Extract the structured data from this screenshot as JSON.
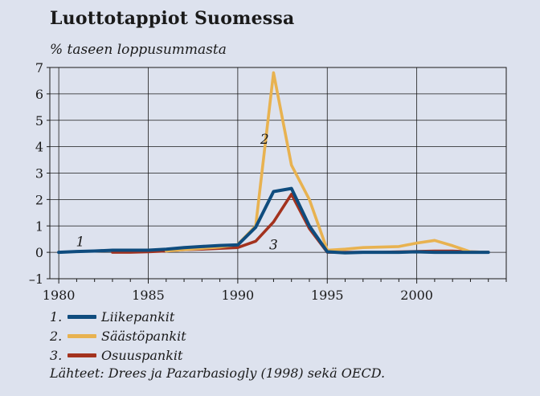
{
  "chart_data": {
    "type": "line",
    "title": "Luottotappiot Suomessa",
    "subtitle": "% taseen loppusummasta",
    "xlabel": "",
    "ylabel": "",
    "xlim": [
      1979.5,
      2005
    ],
    "ylim": [
      -1,
      7
    ],
    "x_ticks": [
      "1980",
      "1985",
      "1990",
      "1995",
      "2000"
    ],
    "x_tick_values": [
      1980,
      1985,
      1990,
      1995,
      2000
    ],
    "y_ticks": [
      "–1",
      "0",
      "1",
      "2",
      "3",
      "4",
      "5",
      "6",
      "7"
    ],
    "y_tick_values": [
      -1,
      0,
      1,
      2,
      3,
      4,
      5,
      6,
      7
    ],
    "grid": true,
    "series": [
      {
        "name": "Liikepankit",
        "color": "#0f4c7e",
        "x": [
          1980,
          1981,
          1982,
          1983,
          1984,
          1985,
          1986,
          1987,
          1988,
          1989,
          1990,
          1991,
          1992,
          1993,
          1994,
          1995,
          1996,
          1997,
          1998,
          1999,
          2000,
          2001,
          2002,
          2003,
          2004
        ],
        "values": [
          0.0,
          0.03,
          0.05,
          0.08,
          0.08,
          0.08,
          0.12,
          0.18,
          0.22,
          0.26,
          0.28,
          0.95,
          2.3,
          2.42,
          1.0,
          0.02,
          -0.02,
          0.0,
          0.0,
          0.0,
          0.02,
          0.0,
          0.0,
          0.0,
          0.0
        ]
      },
      {
        "name": "Säästöpankit",
        "color": "#e8b250",
        "x": [
          1986,
          1987,
          1988,
          1989,
          1990,
          1991,
          1992,
          1993,
          1994,
          1995,
          1996,
          1997,
          1998,
          1999,
          2000,
          2001,
          2002,
          2003,
          2004
        ],
        "values": [
          0.05,
          0.1,
          0.15,
          0.2,
          0.3,
          1.0,
          6.8,
          3.3,
          2.0,
          0.08,
          0.12,
          0.18,
          0.2,
          0.22,
          0.35,
          0.45,
          0.25,
          0.02,
          0.0
        ]
      },
      {
        "name": "Osuuspankit",
        "color": "#a3321e",
        "x": [
          1983,
          1984,
          1985,
          1986,
          1987,
          1988,
          1989,
          1990,
          1991,
          1992,
          1993,
          1994,
          1995,
          1996,
          1997,
          1998,
          1999,
          2000,
          2001,
          2002,
          2003,
          2004
        ],
        "values": [
          0.0,
          0.0,
          0.02,
          0.05,
          0.1,
          0.12,
          0.15,
          0.18,
          0.42,
          1.15,
          2.2,
          0.9,
          0.0,
          0.0,
          0.0,
          0.0,
          0.02,
          0.03,
          0.05,
          0.05,
          0.02,
          0.0
        ]
      }
    ],
    "annotations": [
      {
        "text": "1",
        "x": 1981.2,
        "y": 0.42
      },
      {
        "text": "2",
        "x": 1991.5,
        "y": 4.3
      },
      {
        "text": "3",
        "x": 1992.0,
        "y": 0.3
      }
    ],
    "legend": {
      "position": "bottom-left",
      "items": [
        {
          "number": "1.",
          "label": "Liikepankit",
          "color": "#0f4c7e"
        },
        {
          "number": "2.",
          "label": "Säästöpankit",
          "color": "#e8b250"
        },
        {
          "number": "3.",
          "label": "Osuuspankit",
          "color": "#a3321e"
        }
      ]
    },
    "source": "Lähteet: Drees ja Pazarbasiogly (1998) sekä OECD."
  }
}
